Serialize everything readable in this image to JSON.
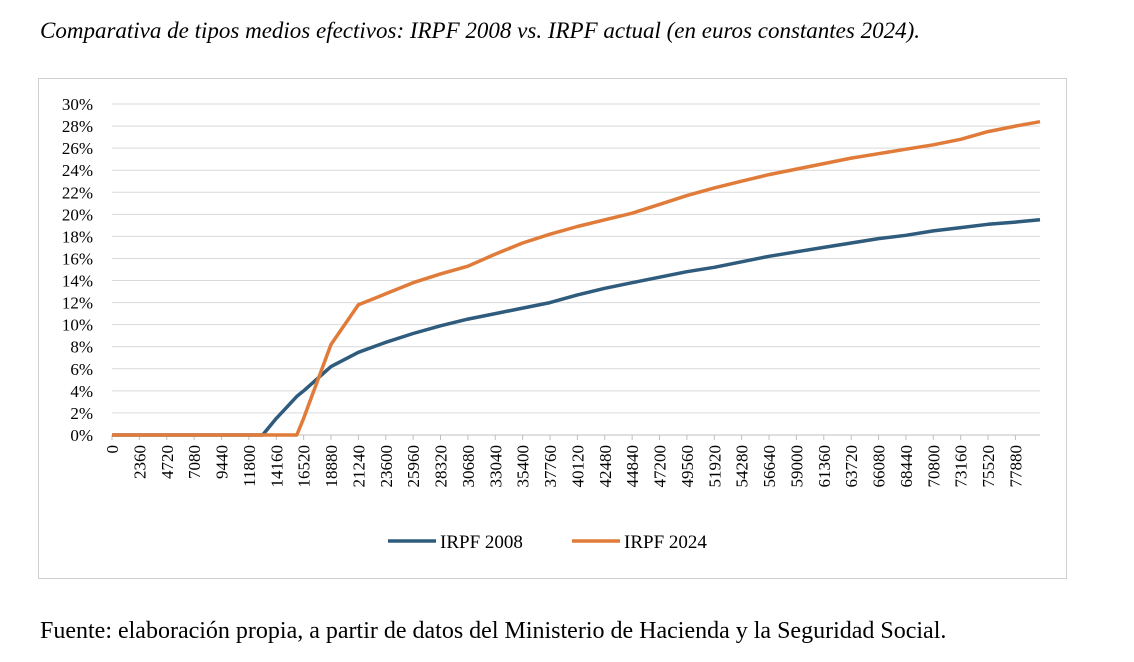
{
  "chart_data": {
    "type": "line",
    "title": "Comparativa de tipos medios efectivos: IRPF 2008 vs. IRPF actual (en euros constantes 2024).",
    "caption": "Fuente: elaboración propia, a partir de datos del Ministerio de Hacienda y la Seguridad Social.",
    "x": [
      0,
      2360,
      4720,
      7080,
      9440,
      11800,
      12980,
      14160,
      15930,
      16520,
      18880,
      21240,
      23600,
      25960,
      28320,
      30680,
      33040,
      35400,
      37760,
      40120,
      42480,
      44840,
      47200,
      49560,
      51920,
      54280,
      56640,
      59000,
      61360,
      63720,
      66080,
      68440,
      70800,
      73160,
      75520,
      77880,
      80000
    ],
    "series": [
      {
        "name": "IRPF 2008",
        "color": "#2f5b7d",
        "values": [
          0,
          0,
          0,
          0,
          0,
          0,
          0,
          1.5,
          3.5,
          4.0,
          6.2,
          7.5,
          8.4,
          9.2,
          9.9,
          10.5,
          11.0,
          11.5,
          12.0,
          12.7,
          13.3,
          13.8,
          14.3,
          14.8,
          15.2,
          15.7,
          16.2,
          16.6,
          17.0,
          17.4,
          17.8,
          18.1,
          18.5,
          18.8,
          19.1,
          19.3,
          19.5
        ]
      },
      {
        "name": "IRPF 2024",
        "color": "#e07b39",
        "values": [
          0,
          0,
          0,
          0,
          0,
          0,
          0,
          0,
          0,
          1.5,
          8.2,
          11.8,
          12.8,
          13.8,
          14.6,
          15.3,
          16.4,
          17.4,
          18.2,
          18.9,
          19.5,
          20.1,
          20.9,
          21.7,
          22.4,
          23.0,
          23.6,
          24.1,
          24.6,
          25.1,
          25.5,
          25.9,
          26.3,
          26.8,
          27.5,
          28.0,
          28.4
        ]
      }
    ],
    "xlim": [
      0,
      80000
    ],
    "xticks": [
      0,
      2360,
      4720,
      7080,
      9440,
      11800,
      14160,
      16520,
      18880,
      21240,
      23600,
      25960,
      28320,
      30680,
      33040,
      35400,
      37760,
      40120,
      42480,
      44840,
      47200,
      49560,
      51920,
      54280,
      56640,
      59000,
      61360,
      63720,
      66080,
      68440,
      70800,
      73160,
      75520,
      77880
    ],
    "ylim": [
      0,
      30
    ],
    "yticks": [
      {
        "value": 0,
        "label": "0%"
      },
      {
        "value": 2,
        "label": "2%"
      },
      {
        "value": 4,
        "label": "4%"
      },
      {
        "value": 6,
        "label": "6%"
      },
      {
        "value": 8,
        "label": "8%"
      },
      {
        "value": 10,
        "label": "10%"
      },
      {
        "value": 12,
        "label": "12%"
      },
      {
        "value": 14,
        "label": "14%"
      },
      {
        "value": 16,
        "label": "16%"
      },
      {
        "value": 18,
        "label": "18%"
      },
      {
        "value": 20,
        "label": "20%"
      },
      {
        "value": 22,
        "label": "22%"
      },
      {
        "value": 24,
        "label": "24%"
      },
      {
        "value": 26,
        "label": "26%"
      },
      {
        "value": 28,
        "label": "28%"
      },
      {
        "value": 30,
        "label": "30%"
      }
    ],
    "grid": true,
    "legend": "bottom"
  }
}
